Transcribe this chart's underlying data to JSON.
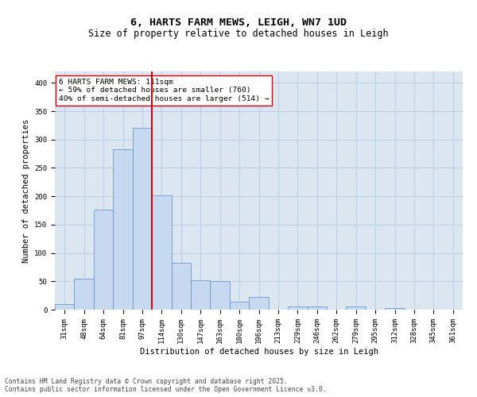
{
  "title": "6, HARTS FARM MEWS, LEIGH, WN7 1UD",
  "subtitle": "Size of property relative to detached houses in Leigh",
  "xlabel": "Distribution of detached houses by size in Leigh",
  "ylabel": "Number of detached properties",
  "bar_color": "#c6d9f1",
  "bar_edge_color": "#5b8ac5",
  "grid_color": "#b8c8e0",
  "background_color": "#dce6f1",
  "bins": [
    "31sqm",
    "48sqm",
    "64sqm",
    "81sqm",
    "97sqm",
    "114sqm",
    "130sqm",
    "147sqm",
    "163sqm",
    "180sqm",
    "196sqm",
    "213sqm",
    "229sqm",
    "246sqm",
    "262sqm",
    "279sqm",
    "295sqm",
    "312sqm",
    "328sqm",
    "345sqm",
    "361sqm"
  ],
  "values": [
    10,
    54,
    176,
    283,
    320,
    202,
    83,
    52,
    50,
    14,
    22,
    0,
    6,
    6,
    0,
    6,
    0,
    3,
    0,
    0,
    0
  ],
  "vline_color": "#cc0000",
  "annotation_text": "6 HARTS FARM MEWS: 111sqm\n← 59% of detached houses are smaller (760)\n40% of semi-detached houses are larger (514) →",
  "annotation_box_color": "#ffffff",
  "annotation_box_edge": "#cc0000",
  "ylim": [
    0,
    420
  ],
  "yticks": [
    0,
    50,
    100,
    150,
    200,
    250,
    300,
    350,
    400
  ],
  "footer_text": "Contains HM Land Registry data © Crown copyright and database right 2025.\nContains public sector information licensed under the Open Government Licence v3.0.",
  "title_fontsize": 9.5,
  "subtitle_fontsize": 8.5,
  "axis_label_fontsize": 7.5,
  "tick_fontsize": 6.5,
  "annotation_fontsize": 6.8,
  "footer_fontsize": 5.8
}
